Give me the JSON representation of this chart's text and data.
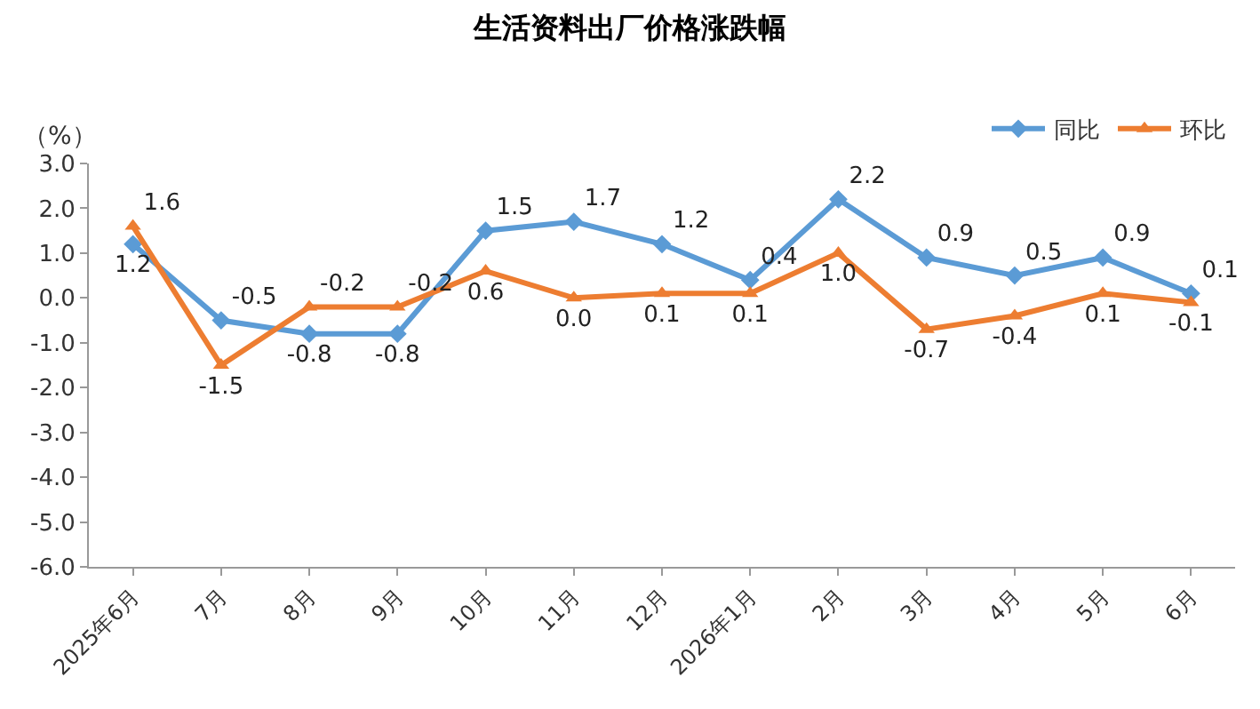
{
  "chart_data": {
    "type": "line",
    "title": "生活资料出厂价格涨跌幅",
    "ylabel": "（%）",
    "categories": [
      "2025年6月",
      "7月",
      "8月",
      "9月",
      "10月",
      "11月",
      "12月",
      "2026年1月",
      "2月",
      "3月",
      "4月",
      "5月",
      "6月"
    ],
    "series": [
      {
        "name": "同比",
        "color": "#5b9bd5",
        "marker": "diamond",
        "values": [
          1.2,
          -0.5,
          -0.8,
          -0.8,
          1.5,
          1.7,
          1.2,
          0.4,
          2.2,
          0.9,
          0.5,
          0.9,
          0.1
        ],
        "value_labels": [
          "1.2",
          "-0.5",
          "-0.8",
          "-0.8",
          "1.5",
          "1.7",
          "1.2",
          "0.4",
          "2.2",
          "0.9",
          "0.5",
          "0.9",
          "0.1"
        ]
      },
      {
        "name": "环比",
        "color": "#ed7d31",
        "marker": "triangle",
        "values": [
          1.6,
          -1.5,
          -0.2,
          -0.2,
          0.6,
          0.0,
          0.1,
          0.1,
          1.0,
          -0.7,
          -0.4,
          0.1,
          -0.1
        ],
        "value_labels": [
          "1.6",
          "-1.5",
          "-0.2",
          "-0.2",
          "0.6",
          "0.0",
          "0.1",
          "0.1",
          "1.0",
          "-0.7",
          "-0.4",
          "0.1",
          "-0.1"
        ]
      }
    ],
    "ylim": [
      -6,
      3
    ],
    "yticks": [
      {
        "value": -6,
        "label": "-6.0"
      },
      {
        "value": -5,
        "label": "-5.0"
      },
      {
        "value": -4,
        "label": "-4.0"
      },
      {
        "value": -3,
        "label": "-3.0"
      },
      {
        "value": -2,
        "label": "-2.0"
      },
      {
        "value": -1,
        "label": "-1.0"
      },
      {
        "value": 0,
        "label": "0.0"
      },
      {
        "value": 1,
        "label": "1.0"
      },
      {
        "value": 2,
        "label": "2.0"
      },
      {
        "value": 3,
        "label": "3.0"
      }
    ],
    "legend": "top right",
    "line_style": "solid"
  }
}
